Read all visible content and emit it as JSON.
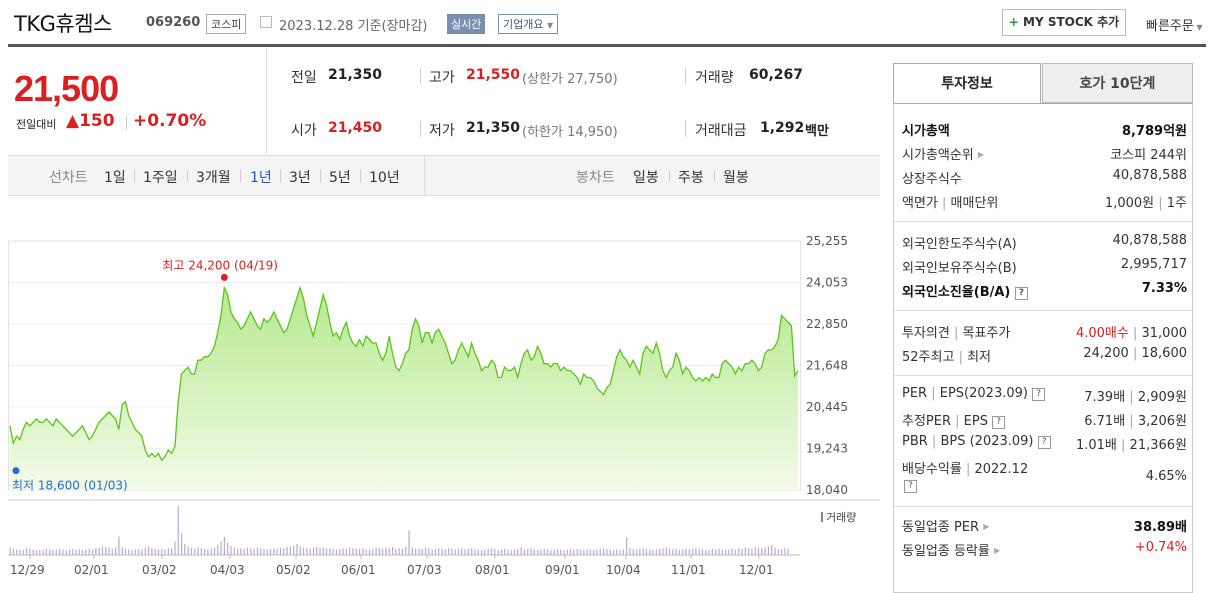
{
  "header": {
    "title": "TKG휴켐스",
    "code": "069260",
    "market": "코스피",
    "date": "2023.12.28 기준(장마감)",
    "realtime": "실시간",
    "company_info": "기업개요",
    "my_stock": "MY STOCK 추가",
    "quick_order": "빠른주문"
  },
  "price": {
    "current": "21,500",
    "change_label": "전일대비",
    "change": "150",
    "change_pct": "+0.70%"
  },
  "info": {
    "prev_label": "전일",
    "prev": "21,350",
    "high_label": "고가",
    "high": "21,550",
    "upper_limit": "(상한가 27,750)",
    "volume_label": "거래량",
    "volume": "60,267",
    "open_label": "시가",
    "open": "21,450",
    "low_label": "저가",
    "low": "21,350",
    "lower_limit": "(하한가 14,950)",
    "amount_label": "거래대금",
    "amount": "1,292",
    "amount_unit": "백만"
  },
  "toolbar": {
    "line_chart": "선차트",
    "periods": [
      "1일",
      "1주일",
      "3개월",
      "1년",
      "3년",
      "5년",
      "10년"
    ],
    "selected_period": "1년",
    "candle_chart": "봉차트",
    "candles": [
      "일봉",
      "주봉",
      "월봉"
    ]
  },
  "chart_data": {
    "type": "area",
    "y_ticks": [
      "25,255",
      "24,053",
      "22,850",
      "21,648",
      "20,445",
      "19,243",
      "18,040"
    ],
    "ylim": [
      18040,
      25255
    ],
    "x_ticks": [
      "12/29",
      "02/01",
      "03/02",
      "04/03",
      "05/02",
      "06/01",
      "07/03",
      "08/01",
      "09/01",
      "10/04",
      "11/01",
      "12/01"
    ],
    "max_label": "최고 24,200 (04/19)",
    "min_label": "최저 18,600 (01/03)",
    "volume_legend": "거래량",
    "series": [
      {
        "values": [
          19900,
          19400,
          19600,
          19500,
          19800,
          20000,
          19900,
          20000,
          20100,
          20000,
          20000,
          20100,
          20000,
          19900,
          20100,
          20000,
          19900,
          19800,
          19700,
          19600,
          19700,
          19800,
          19900,
          19700,
          19500,
          19600,
          19800,
          20000,
          20100,
          20200,
          20300,
          20200,
          20100,
          19800,
          20500,
          20600,
          20200,
          20000,
          19800,
          19700,
          19600,
          19200,
          19000,
          19100,
          19000,
          19100,
          18900,
          19000,
          19200,
          19100,
          19300,
          20600,
          21400,
          21500,
          21600,
          21400,
          21400,
          21800,
          21800,
          21900,
          21900,
          22000,
          22200,
          22600,
          23100,
          23900,
          23700,
          23200,
          23000,
          22900,
          22700,
          22800,
          23000,
          23200,
          23000,
          22800,
          22700,
          23000,
          22900,
          23000,
          23200,
          23000,
          22800,
          22600,
          22700,
          23000,
          23300,
          23600,
          23900,
          23600,
          23100,
          22800,
          22500,
          22900,
          23300,
          23700,
          23400,
          22900,
          22500,
          22600,
          22400,
          22700,
          22900,
          22500,
          22300,
          22200,
          22400,
          22200,
          22500,
          22400,
          22300,
          22300,
          22000,
          21800,
          22000,
          22500,
          22000,
          21600,
          21500,
          21700,
          22000,
          22100,
          22700,
          23000,
          22800,
          22300,
          22600,
          22600,
          22300,
          22600,
          22700,
          22500,
          22300,
          22000,
          21700,
          21800,
          22100,
          22300,
          22100,
          21900,
          22300,
          22000,
          21800,
          21500,
          21600,
          21600,
          21800,
          21700,
          21300,
          21300,
          21600,
          21500,
          21500,
          21600,
          21300,
          21700,
          22000,
          22100,
          21800,
          21900,
          22200,
          22000,
          21700,
          21700,
          21600,
          21700,
          21700,
          21500,
          21600,
          21500,
          21500,
          21400,
          21300,
          21100,
          21400,
          21300,
          21300,
          21200,
          21000,
          20900,
          20800,
          21000,
          21100,
          21500,
          21900,
          22100,
          21900,
          21800,
          21600,
          21800,
          21600,
          21400,
          22000,
          22200,
          22100,
          22000,
          22300,
          22000,
          21500,
          21300,
          21500,
          21600,
          22000,
          21800,
          21400,
          21600,
          21500,
          21300,
          21200,
          21300,
          21200,
          21300,
          21200,
          21400,
          21300,
          21300,
          21700,
          21800,
          21700,
          21600,
          21400,
          21600,
          21500,
          21700,
          21700,
          21800,
          21700,
          21500,
          21600,
          22000,
          22100,
          22100,
          22200,
          22400,
          23100,
          23000,
          22900,
          22800,
          21350,
          21500
        ]
      }
    ],
    "volume": [
      12,
      10,
      9,
      9,
      8,
      11,
      10,
      9,
      8,
      8,
      9,
      10,
      9,
      8,
      9,
      10,
      9,
      8,
      9,
      10,
      9,
      9,
      8,
      9,
      10,
      9,
      11,
      12,
      14,
      13,
      12,
      10,
      12,
      30,
      12,
      10,
      9,
      8,
      9,
      10,
      9,
      12,
      14,
      11,
      10,
      9,
      10,
      9,
      11,
      12,
      22,
      80,
      35,
      18,
      14,
      12,
      10,
      12,
      11,
      10,
      9,
      11,
      12,
      16,
      22,
      30,
      20,
      15,
      12,
      10,
      11,
      10,
      12,
      11,
      10,
      12,
      11,
      10,
      9,
      10,
      11,
      10,
      12,
      11,
      13,
      14,
      15,
      18,
      14,
      12,
      11,
      10,
      12,
      13,
      11,
      12,
      10,
      11,
      10,
      9,
      10,
      11,
      10,
      12,
      11,
      10,
      10,
      11,
      9,
      8,
      9,
      12,
      11,
      10,
      12,
      11,
      13,
      10,
      11,
      10,
      13,
      40,
      12,
      10,
      11,
      10,
      12,
      11,
      9,
      10,
      11,
      10,
      9,
      11,
      10,
      9,
      10,
      11,
      9,
      10,
      11,
      10,
      9,
      8,
      9,
      10,
      11,
      10,
      8,
      9,
      10,
      9,
      8,
      9,
      10,
      12,
      9,
      10,
      11,
      9,
      8,
      9,
      10,
      9,
      8,
      9,
      10,
      9,
      8,
      9,
      10,
      9,
      10,
      9,
      8,
      9,
      9,
      8,
      9,
      10,
      11,
      10,
      9,
      8,
      9,
      8,
      9,
      28,
      12,
      10,
      9,
      10,
      11,
      10,
      9,
      8,
      9,
      10,
      11,
      12,
      10,
      9,
      10,
      8,
      9,
      10,
      9,
      10,
      11,
      10,
      9,
      8,
      9,
      10,
      9,
      10,
      9,
      8,
      9,
      10,
      9,
      11,
      10,
      12,
      11,
      10,
      13,
      12,
      11,
      12,
      14,
      16,
      12,
      10,
      9,
      11,
      10
    ]
  },
  "side": {
    "tab_active": "투자정보",
    "tab_other": "호가 10단계",
    "market_cap_label": "시가총액",
    "market_cap": "8,789억원",
    "cap_rank_label": "시가총액순위",
    "cap_rank": "코스피 244위",
    "shares_label": "상장주식수",
    "shares": "40,878,588",
    "face_label": "액면가",
    "unit_label": "매매단위",
    "face": "1,000원",
    "unit": "1주",
    "foreign_limit_label": "외국인한도주식수(A)",
    "foreign_limit": "40,878,588",
    "foreign_hold_label": "외국인보유주식수(B)",
    "foreign_hold": "2,995,717",
    "foreign_rate_label": "외국인소진율(B/A)",
    "foreign_rate": "7.33%",
    "opinion_label": "투자의견",
    "target_label": "목표주가",
    "opinion": "4.00매수",
    "target": "31,000",
    "w52_label": "52주최고",
    "w52_low_label": "최저",
    "w52_high": "24,200",
    "w52_low": "18,600",
    "per_label": "PER",
    "eps_label": "EPS(2023.09)",
    "per": "7.39배",
    "eps": "2,909원",
    "est_per_label": "추정PER",
    "est_eps_label": "EPS",
    "est_per": "6.71배",
    "est_eps": "3,206원",
    "pbr_label": "PBR",
    "bps_label": "BPS (2023.09)",
    "pbr": "1.01배",
    "bps": "21,366원",
    "div_label": "배당수익률",
    "div_year": "2022.12",
    "div": "4.65%",
    "industry_per_label": "동일업종 PER",
    "industry_per": "38.89배",
    "industry_chg_label": "동일업종 등락률",
    "industry_chg": "+0.74%"
  }
}
